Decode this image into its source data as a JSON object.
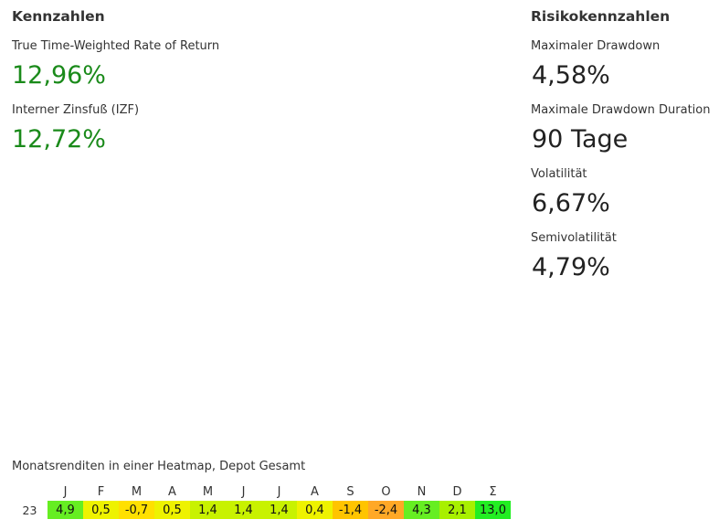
{
  "kennzahlen": {
    "title": "Kennzahlen",
    "twr_label": "True Time-Weighted Rate of Return",
    "twr_value": "12,96%",
    "izf_label": "Interner Zinsfuß (IZF)",
    "izf_value": "12,72%"
  },
  "risiko": {
    "title": "Risikokennzahlen",
    "drawdown_label": "Maximaler Drawdown",
    "drawdown_value": "4,58%",
    "duration_label": "Maximale Drawdown Duration",
    "duration_value": "90 Tage",
    "vol_label": "Volatilität",
    "vol_value": "6,67%",
    "semivol_label": "Semivolatilität",
    "semivol_value": "4,79%"
  },
  "heatmap": {
    "caption": "Monatsrenditen in einer Heatmap, Depot Gesamt",
    "year": "23",
    "months": [
      "J",
      "F",
      "M",
      "A",
      "M",
      "J",
      "J",
      "A",
      "S",
      "O",
      "N",
      "D",
      "Σ"
    ],
    "values": [
      "4,9",
      "0,5",
      "-0,7",
      "0,5",
      "1,4",
      "1,4",
      "1,4",
      "0,4",
      "-1,4",
      "-2,4",
      "4,3",
      "2,1",
      "13,0"
    ],
    "colors": [
      "#66ee22",
      "#eef200",
      "#ffe000",
      "#eef200",
      "#c8f200",
      "#c8f200",
      "#c8f200",
      "#eef200",
      "#ffc400",
      "#ffa826",
      "#66ee22",
      "#a8f000",
      "#22ee22"
    ]
  },
  "colors": {
    "positive": "#1a8a1a",
    "neutral": "#222222"
  }
}
